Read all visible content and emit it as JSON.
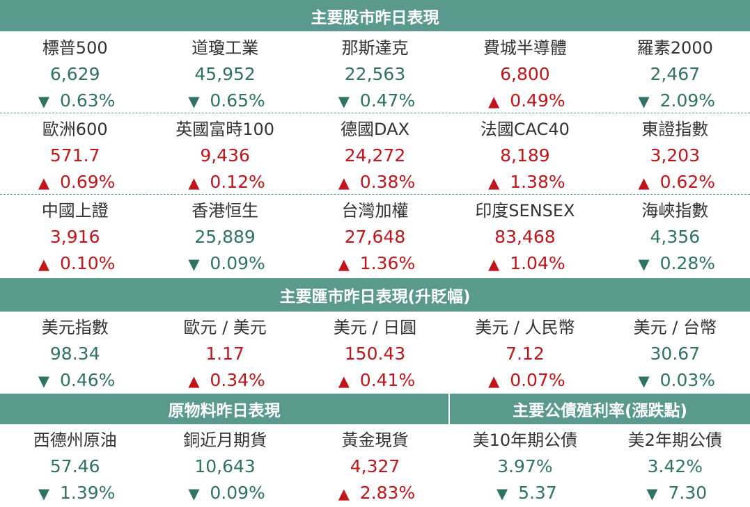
{
  "sections": {
    "stock_title": "主要股市昨日表現",
    "fx_title": "主要匯市昨日表現(升貶幅)",
    "commodity_title": "原物料昨日表現",
    "bond_title": "主要公債殖利率(漲跌點)"
  },
  "glyphs": {
    "up": "▲",
    "down": "▼"
  },
  "colors": {
    "header": "#5a9a8e",
    "up": "#c0151a",
    "down": "#2f7367"
  },
  "stocks": [
    [
      {
        "name": "標普500",
        "value": "6,629",
        "direction": "down",
        "change": "0.63%"
      },
      {
        "name": "道瓊工業",
        "value": "45,952",
        "direction": "down",
        "change": "0.65%"
      },
      {
        "name": "那斯達克",
        "value": "22,563",
        "direction": "down",
        "change": "0.47%"
      },
      {
        "name": "費城半導體",
        "value": "6,800",
        "direction": "up",
        "change": "0.49%"
      },
      {
        "name": "羅素2000",
        "value": "2,467",
        "direction": "down",
        "change": "2.09%"
      }
    ],
    [
      {
        "name": "歐洲600",
        "value": "571.7",
        "direction": "up",
        "change": "0.69%"
      },
      {
        "name": "英國富時100",
        "value": "9,436",
        "direction": "up",
        "change": "0.12%"
      },
      {
        "name": "德國DAX",
        "value": "24,272",
        "direction": "up",
        "change": "0.38%"
      },
      {
        "name": "法國CAC40",
        "value": "8,189",
        "direction": "up",
        "change": "1.38%"
      },
      {
        "name": "東證指數",
        "value": "3,203",
        "direction": "up",
        "change": "0.62%"
      }
    ],
    [
      {
        "name": "中國上證",
        "value": "3,916",
        "direction": "up",
        "change": "0.10%"
      },
      {
        "name": "香港恒生",
        "value": "25,889",
        "direction": "down",
        "change": "0.09%"
      },
      {
        "name": "台灣加權",
        "value": "27,648",
        "direction": "up",
        "change": "1.36%"
      },
      {
        "name": "印度SENSEX",
        "value": "83,468",
        "direction": "up",
        "change": "1.04%"
      },
      {
        "name": "海峽指數",
        "value": "4,356",
        "direction": "down",
        "change": "0.28%"
      }
    ]
  ],
  "fx": [
    {
      "name": "美元指數",
      "value": "98.34",
      "direction": "down",
      "change": "0.46%"
    },
    {
      "name": "歐元 / 美元",
      "value": "1.17",
      "direction": "up",
      "change": "0.34%"
    },
    {
      "name": "美元 / 日圓",
      "value": "150.43",
      "direction": "up",
      "change": "0.41%"
    },
    {
      "name": "美元 / 人民幣",
      "value": "7.12",
      "direction": "up",
      "change": "0.07%"
    },
    {
      "name": "美元 / 台幣",
      "value": "30.67",
      "direction": "down",
      "change": "0.03%"
    }
  ],
  "commodities": [
    {
      "name": "西德州原油",
      "value": "57.46",
      "direction": "down",
      "change": "1.39%"
    },
    {
      "name": "銅近月期貨",
      "value": "10,643",
      "direction": "down",
      "change": "0.09%"
    },
    {
      "name": "黃金現貨",
      "value": "4,327",
      "direction": "up",
      "change": "2.83%"
    }
  ],
  "bonds": [
    {
      "name": "美10年期公債",
      "value": "3.97%",
      "direction": "down",
      "change": "5.37"
    },
    {
      "name": "美2年期公債",
      "value": "3.42%",
      "direction": "down",
      "change": "7.30"
    }
  ]
}
